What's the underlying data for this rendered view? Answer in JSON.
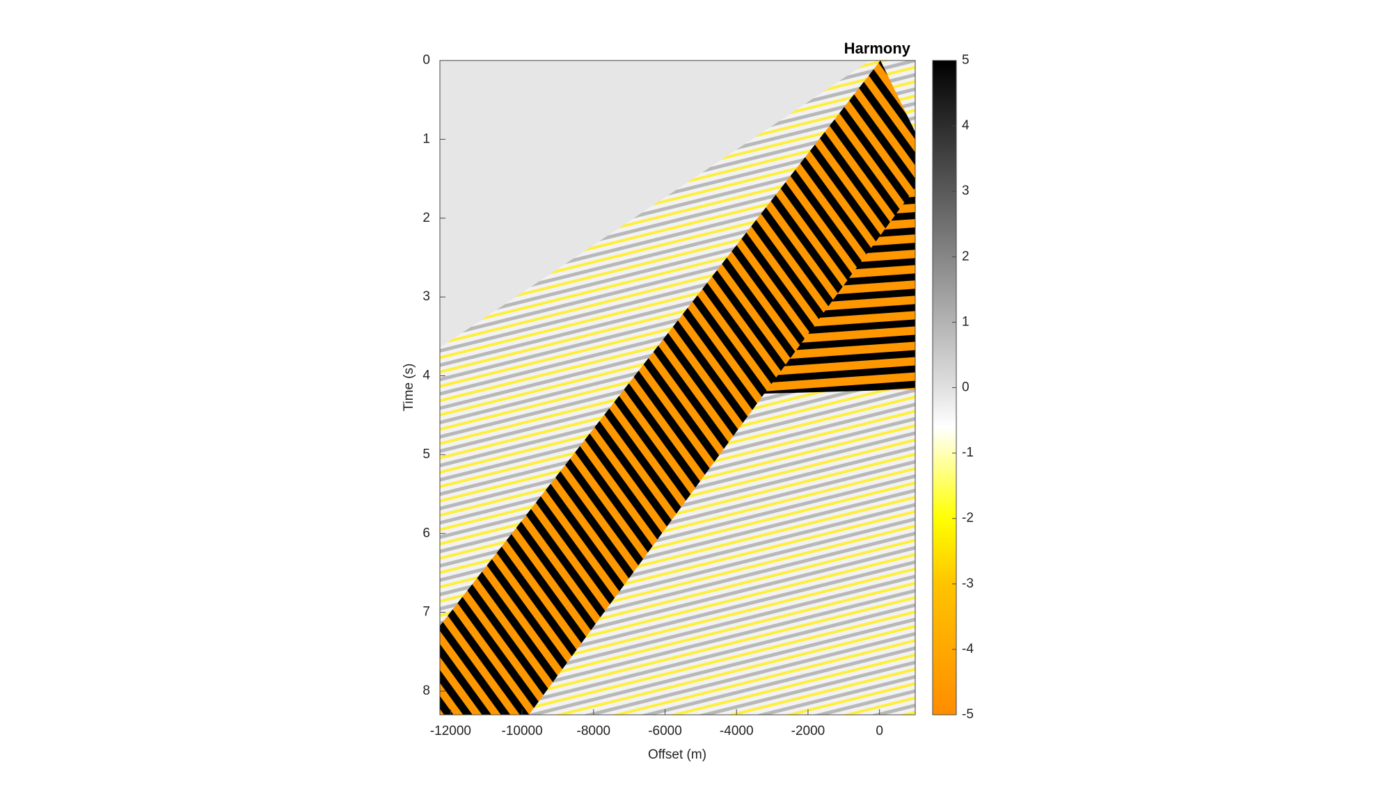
{
  "chart_data": {
    "type": "image",
    "title": "Harmony",
    "x_label": "Offset (m)",
    "y_label": "Time (s)",
    "xlim": [
      -12300,
      1000
    ],
    "xticks": [
      -12000,
      -10000,
      -8000,
      -6000,
      -4000,
      -2000,
      0
    ],
    "ylim": [
      0,
      8.3
    ],
    "yticks": [
      0,
      1,
      2,
      3,
      4,
      5,
      6,
      7,
      8
    ],
    "y_reversed": true,
    "clim": [
      -5,
      5
    ],
    "cticks": [
      -5,
      -4,
      -3,
      -2,
      -1,
      0,
      1,
      2,
      3,
      4,
      5
    ],
    "colormap": [
      {
        "value": -5,
        "color": "#ff8c00"
      },
      {
        "value": -3,
        "color": "#ffc400"
      },
      {
        "value": -2,
        "color": "#ffff00"
      },
      {
        "value": -0.6,
        "color": "#ffffff"
      },
      {
        "value": 0,
        "color": "#e0e0e0"
      },
      {
        "value": 5,
        "color": "#000000"
      }
    ]
  }
}
